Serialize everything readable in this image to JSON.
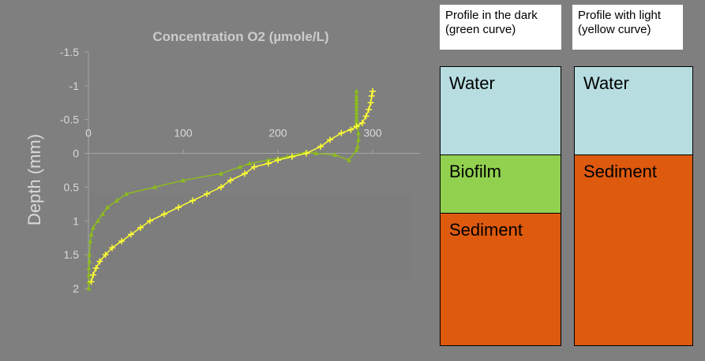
{
  "chart_data": {
    "type": "line",
    "title": "Concentration O2   (µmole/L)",
    "xlabel": "",
    "ylabel": "Depth (mm)",
    "xlim": [
      0,
      350
    ],
    "ylim": [
      -1.5,
      2
    ],
    "y_reversed": true,
    "x_axis_position": "top-at-zero-depth",
    "x_ticks": [
      0,
      100,
      200,
      300
    ],
    "x_tick_labels": [
      "0",
      "100",
      "200",
      "300"
    ],
    "y_ticks": [
      -1.5,
      -1,
      -0.5,
      0,
      0.5,
      1,
      1.5,
      2
    ],
    "y_tick_labels": [
      "-1.5",
      "-1",
      "-0.5",
      "0",
      "0.5",
      "1",
      "1.5",
      "2"
    ],
    "grid": false,
    "series": [
      {
        "color": "#8dbb1e",
        "marker": "triangle",
        "points": [
          [
            283,
            -0.92
          ],
          [
            283,
            -0.85
          ],
          [
            283,
            -0.8
          ],
          [
            283,
            -0.75
          ],
          [
            283,
            -0.7
          ],
          [
            283,
            -0.65
          ],
          [
            283,
            -0.6
          ],
          [
            283,
            -0.55
          ],
          [
            283,
            -0.5
          ],
          [
            283,
            -0.45
          ],
          [
            284,
            -0.4
          ],
          [
            285,
            -0.3
          ],
          [
            285,
            -0.2
          ],
          [
            284,
            -0.1
          ],
          [
            283,
            -0.05
          ],
          [
            275,
            0.1
          ],
          [
            260,
            0.02
          ],
          [
            240,
            0.0
          ],
          [
            230,
            -0.02
          ],
          [
            210,
            0.05
          ],
          [
            190,
            0.1
          ],
          [
            170,
            0.15
          ],
          [
            160,
            0.2
          ],
          [
            140,
            0.3
          ],
          [
            100,
            0.4
          ],
          [
            70,
            0.5
          ],
          [
            40,
            0.6
          ],
          [
            30,
            0.7
          ],
          [
            20,
            0.8
          ],
          [
            15,
            0.9
          ],
          [
            10,
            1.0
          ],
          [
            5,
            1.1
          ],
          [
            3,
            1.2
          ],
          [
            2,
            1.3
          ],
          [
            1,
            1.5
          ],
          [
            1,
            1.6
          ],
          [
            0.5,
            1.7
          ],
          [
            0.5,
            1.8
          ],
          [
            0.5,
            1.9
          ],
          [
            0.5,
            2.0
          ]
        ]
      },
      {
        "color": "#ffff33",
        "marker": "plus",
        "points": [
          [
            300,
            -0.92
          ],
          [
            299,
            -0.85
          ],
          [
            298,
            -0.75
          ],
          [
            296,
            -0.65
          ],
          [
            293,
            -0.55
          ],
          [
            289,
            -0.45
          ],
          [
            283,
            -0.4
          ],
          [
            277,
            -0.35
          ],
          [
            267,
            -0.3
          ],
          [
            255,
            -0.2
          ],
          [
            245,
            -0.1
          ],
          [
            230,
            0.0
          ],
          [
            215,
            0.05
          ],
          [
            200,
            0.1
          ],
          [
            190,
            0.15
          ],
          [
            175,
            0.2
          ],
          [
            165,
            0.3
          ],
          [
            150,
            0.4
          ],
          [
            140,
            0.5
          ],
          [
            125,
            0.6
          ],
          [
            110,
            0.7
          ],
          [
            95,
            0.8
          ],
          [
            80,
            0.9
          ],
          [
            65,
            1.0
          ],
          [
            55,
            1.1
          ],
          [
            45,
            1.2
          ],
          [
            35,
            1.3
          ],
          [
            25,
            1.4
          ],
          [
            18,
            1.5
          ],
          [
            12,
            1.6
          ],
          [
            8,
            1.7
          ],
          [
            5,
            1.8
          ],
          [
            3,
            1.9
          ]
        ]
      }
    ]
  },
  "legend_boxes": {
    "dark": {
      "line1": "Profile in the dark",
      "line2": "(green curve)"
    },
    "light": {
      "line1": "Profile with light",
      "line2": "(yellow curve)"
    }
  },
  "columns": {
    "dark": {
      "water_label": "Water",
      "biofilm_label": "Biofilm",
      "sediment_label": "Sediment"
    },
    "light": {
      "water_label": "Water",
      "sediment_label": "Sediment"
    }
  },
  "colors": {
    "background": "#7f7f7f",
    "water": "#b7dde0",
    "biofilm": "#92d050",
    "sediment": "#dd5a0f",
    "axis_text": "#d9d9d9"
  }
}
